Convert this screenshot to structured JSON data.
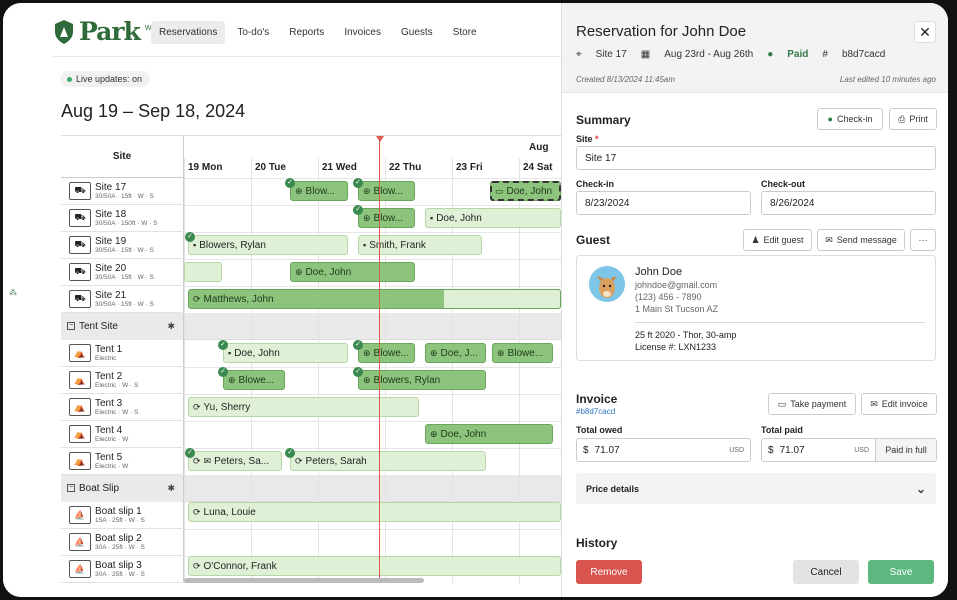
{
  "brand": {
    "name": "Park",
    "with": "With Us"
  },
  "nav": [
    "Reservations",
    "To-do's",
    "Reports",
    "Invoices",
    "Guests",
    "Store"
  ],
  "live": "Live updates: on",
  "range": "Aug 19 – Sep 18, 2024",
  "grid": {
    "site_header": "Site",
    "month": "Aug",
    "days": [
      "19 Mon",
      "20 Tue",
      "21 Wed",
      "22 Thu",
      "23 Fri",
      "24 Sat"
    ],
    "rows": [
      {
        "name": "Site 17",
        "sub": "30/50A · 15ft · W · S"
      },
      {
        "name": "Site 18",
        "sub": "30/50A · 150ft · W · S"
      },
      {
        "name": "Site 19",
        "sub": "30/50A · 15ft · W · S"
      },
      {
        "name": "Site 20",
        "sub": "30/50A · 15ft · W · S"
      },
      {
        "name": "Site 21",
        "sub": "30/50A · 15ft · W · S"
      }
    ],
    "group_tent": "Tent Site",
    "tent_rows": [
      {
        "name": "Tent 1",
        "sub": "Electric"
      },
      {
        "name": "Tent 2",
        "sub": "Electric · W · S"
      },
      {
        "name": "Tent 3",
        "sub": "Electric · W · S"
      },
      {
        "name": "Tent 4",
        "sub": "Electric · W"
      },
      {
        "name": "Tent 5",
        "sub": "Electric · W"
      }
    ],
    "group_boat": "Boat Slip",
    "boat_rows": [
      {
        "name": "Boat slip 1",
        "sub": "15A · 25ft · W · S"
      },
      {
        "name": "Boat slip 2",
        "sub": "30A · 25ft · W · S"
      },
      {
        "name": "Boat slip 3",
        "sub": "30A · 25ft · W · S"
      }
    ],
    "bookings": {
      "b1": "Blow...",
      "b2": "Blow...",
      "b3": "Doe, John",
      "b4": "Blow...",
      "b5": "Doe, John",
      "b6": "Blowers, Rylan",
      "b7": "Smith, Frank",
      "b8": "Doe, John",
      "b9": "Matthews, John",
      "b10": "Doe, John",
      "b11": "Blowe...",
      "b12": "Doe, J...",
      "b13": "Blowe...",
      "b14": "Blowe...",
      "b15": "Blowers, Rylan",
      "b16": "Yu, Sherry",
      "b17": "Doe, John",
      "b18": "Peters, Sa...",
      "b19": "Peters, Sarah",
      "b20": "Luna, Louie",
      "b21": "O'Connor, Frank"
    }
  },
  "panel": {
    "title": "Reservation for John Doe",
    "site": "Site 17",
    "dates": "Aug 23rd - Aug 26th",
    "status": "Paid",
    "hash": "b8d7cacd",
    "created": "Created 8/13/2024 11:45am",
    "edited": "Last edited 10 minutes ago",
    "summary": "Summary",
    "checkin_btn": "Check-in",
    "print_btn": "Print",
    "site_label": "Site",
    "site_value": "Site 17",
    "checkin_label": "Check-in",
    "checkin_value": "8/23/2024",
    "checkout_label": "Check-out",
    "checkout_value": "8/26/2024",
    "guest": "Guest",
    "edit_guest": "Edit guest",
    "send_message": "Send message",
    "more": "···",
    "guest_name": "John Doe",
    "email": "johndoe@gmail.com",
    "phone": "(123) 456 - 7890",
    "address": "1 Main St Tucson AZ",
    "vehicle": "25 ft 2020 - Thor, 30-amp",
    "license": "License #: LXN1233",
    "invoice": "Invoice",
    "invoice_hash": "#b8d7cacd",
    "take_payment": "Take payment",
    "edit_invoice": "Edit invoice",
    "owed_label": "Total owed",
    "owed_value": "71.07",
    "paid_label": "Total paid",
    "paid_value": "71.07",
    "currency": "USD",
    "dollar": "$",
    "paid_full": "Paid in full",
    "price_details": "Price details",
    "history": "History",
    "remove": "Remove",
    "cancel": "Cancel",
    "save": "Save"
  },
  "colors": {
    "brand": "#2f6b3a",
    "accent_green": "#5cb87f",
    "remove_red": "#d9534f",
    "today_line": "#e05a4a"
  }
}
